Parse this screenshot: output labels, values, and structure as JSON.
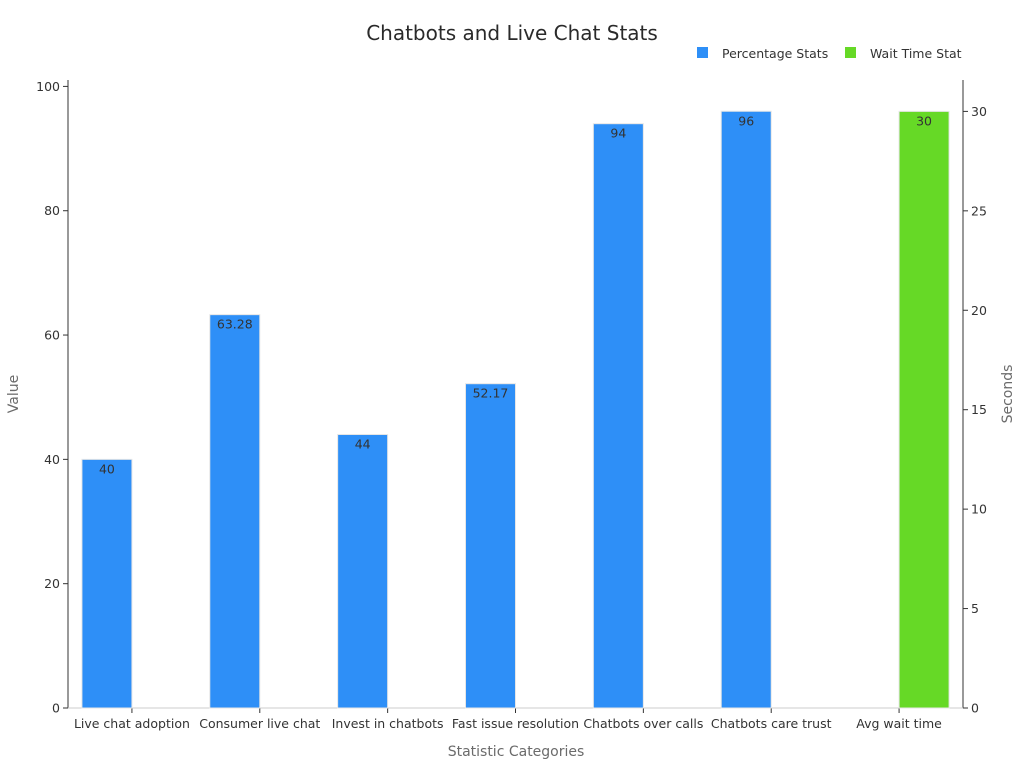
{
  "chart_data": {
    "type": "bar",
    "title": "Chatbots and Live Chat Stats",
    "xlabel": "Statistic Categories",
    "ylabel": "Value",
    "y2label": "Seconds",
    "categories": [
      "Live chat adoption",
      "Consumer live chat",
      "Invest in chatbots",
      "Fast issue resolution",
      "Chatbots over calls",
      "Chatbots care trust",
      "Avg wait time"
    ],
    "series": [
      {
        "name": "Percentage Stats",
        "axis": "left",
        "color": "#2e8ff7",
        "values": [
          40,
          63.28,
          44,
          52.17,
          94,
          96,
          null
        ],
        "labels": [
          "40",
          "63.28",
          "44",
          "52.17",
          "94",
          "96",
          ""
        ]
      },
      {
        "name": "Wait Time Stat",
        "axis": "right",
        "color": "#66d926",
        "values": [
          null,
          null,
          null,
          null,
          null,
          null,
          30
        ],
        "labels": [
          "",
          "",
          "",
          "",
          "",
          "",
          "30"
        ]
      }
    ],
    "ylim": [
      0,
      100
    ],
    "yticks": [
      0,
      20,
      40,
      60,
      80,
      100
    ],
    "y2lim": [
      0,
      30
    ],
    "y2ticks": [
      0,
      5,
      10,
      15,
      20,
      25,
      30
    ],
    "legend_position": "top-right",
    "grid": false
  }
}
